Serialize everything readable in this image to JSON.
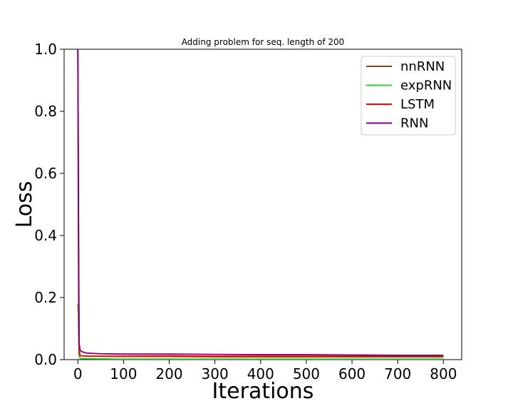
{
  "chart_data": {
    "type": "line",
    "title": "Adding problem for seq. length of 200",
    "xlabel": "Iterations",
    "ylabel": "Loss",
    "xlim": [
      -30,
      840
    ],
    "ylim": [
      0,
      1.0
    ],
    "xticks": [
      0,
      100,
      200,
      300,
      400,
      500,
      600,
      700,
      800
    ],
    "yticks": [
      0.0,
      0.2,
      0.4,
      0.6,
      0.8,
      1.0
    ],
    "xtick_labels": [
      "0",
      "100",
      "200",
      "300",
      "400",
      "500",
      "600",
      "700",
      "800"
    ],
    "ytick_labels": [
      "0.0",
      "0.2",
      "0.4",
      "0.6",
      "0.8",
      "1.0"
    ],
    "grid": false,
    "legend_position": "top-right",
    "series": [
      {
        "name": "nnRNN",
        "color": "#8b4513",
        "points": [
          [
            0,
            1.0
          ],
          [
            1,
            0.6
          ],
          [
            2,
            0.2
          ],
          [
            3,
            0.03
          ],
          [
            5,
            0.013
          ],
          [
            20,
            0.011
          ],
          [
            100,
            0.01
          ],
          [
            200,
            0.01
          ],
          [
            300,
            0.009
          ],
          [
            400,
            0.009
          ],
          [
            500,
            0.009
          ],
          [
            600,
            0.009
          ],
          [
            700,
            0.009
          ],
          [
            800,
            0.009
          ]
        ]
      },
      {
        "name": "expRNN",
        "color": "#33cc33",
        "points": [
          [
            0,
            0.18
          ],
          [
            1,
            0.15
          ],
          [
            2,
            0.05
          ],
          [
            3,
            0.01
          ],
          [
            5,
            0.004
          ],
          [
            20,
            0.003
          ],
          [
            100,
            0.002
          ],
          [
            200,
            0.002
          ],
          [
            300,
            0.002
          ],
          [
            400,
            0.002
          ],
          [
            500,
            0.002
          ],
          [
            600,
            0.002
          ],
          [
            700,
            0.002
          ],
          [
            800,
            0.002
          ]
        ]
      },
      {
        "name": "LSTM",
        "color": "#ff0000",
        "points": [
          [
            0,
            1.0
          ],
          [
            1,
            0.5
          ],
          [
            2,
            0.1
          ],
          [
            3,
            0.02
          ],
          [
            5,
            0.013
          ],
          [
            20,
            0.011
          ],
          [
            100,
            0.011
          ],
          [
            200,
            0.012
          ],
          [
            300,
            0.011
          ],
          [
            400,
            0.011
          ],
          [
            500,
            0.011
          ],
          [
            600,
            0.011
          ],
          [
            700,
            0.011
          ],
          [
            800,
            0.011
          ]
        ]
      },
      {
        "name": "RNN",
        "color": "#800080",
        "points": [
          [
            0,
            1.0
          ],
          [
            1,
            0.7
          ],
          [
            2,
            0.3
          ],
          [
            3,
            0.05
          ],
          [
            5,
            0.03
          ],
          [
            10,
            0.025
          ],
          [
            20,
            0.021
          ],
          [
            50,
            0.019
          ],
          [
            100,
            0.018
          ],
          [
            200,
            0.018
          ],
          [
            300,
            0.017
          ],
          [
            400,
            0.016
          ],
          [
            500,
            0.016
          ],
          [
            600,
            0.015
          ],
          [
            700,
            0.014
          ],
          [
            800,
            0.014
          ]
        ]
      }
    ]
  }
}
